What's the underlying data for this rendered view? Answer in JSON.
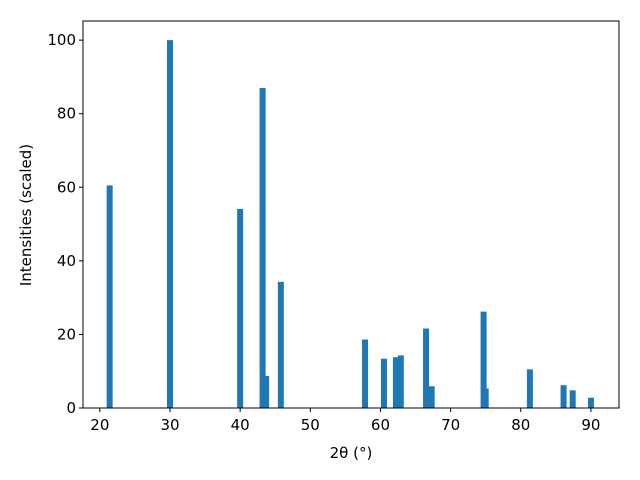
{
  "chart_data": {
    "type": "bar",
    "xlabel": "2θ (°)",
    "ylabel": "Intensities (scaled)",
    "x": [
      21.4,
      30.0,
      40.0,
      43.2,
      43.7,
      45.8,
      57.8,
      60.5,
      62.2,
      62.9,
      66.5,
      67.3,
      74.7,
      75.0,
      81.3,
      86.1,
      87.4,
      90.0
    ],
    "values": [
      60.5,
      100,
      54.1,
      87.0,
      8.7,
      34.3,
      18.6,
      13.4,
      13.8,
      14.3,
      21.6,
      5.9,
      26.2,
      5.3,
      10.5,
      6.2,
      4.8,
      2.8
    ],
    "color": "#1f77b4",
    "xlim": [
      17.6,
      94.0
    ],
    "ylim": [
      0,
      105.2
    ],
    "xticks": [
      20,
      30,
      40,
      50,
      60,
      70,
      80,
      90
    ],
    "yticks": [
      0,
      20,
      40,
      60,
      80,
      100
    ]
  }
}
